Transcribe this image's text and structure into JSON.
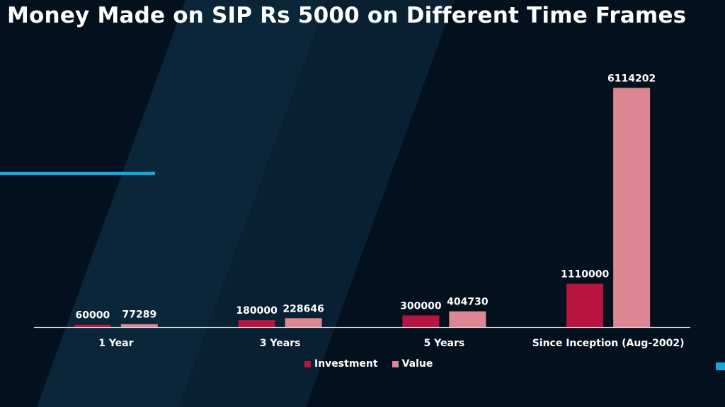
{
  "title": "Money Made on SIP Rs 5000 on Different Time Frames",
  "colors": {
    "background": "#03111f",
    "band": "#0d2a3e",
    "accent": "#1aa6d8",
    "investment": "#b81440",
    "value": "#dc8791",
    "axis": "#c9d4db",
    "text": "#ffffff"
  },
  "chart_data": {
    "type": "bar",
    "title": "Money Made on SIP Rs 5000 on Different Time Frames",
    "categories": [
      "1 Year",
      "3 Years",
      "5 Years",
      "Since Inception (Aug-2002)"
    ],
    "series": [
      {
        "name": "Investment",
        "values": [
          60000,
          180000,
          300000,
          1110000
        ]
      },
      {
        "name": "Value",
        "values": [
          77289,
          228646,
          404730,
          6114202
        ]
      }
    ],
    "xlabel": "",
    "ylabel": "",
    "ylim": [
      0,
      6500000
    ],
    "grid": false,
    "legend": "bottom",
    "data_labels": true
  }
}
